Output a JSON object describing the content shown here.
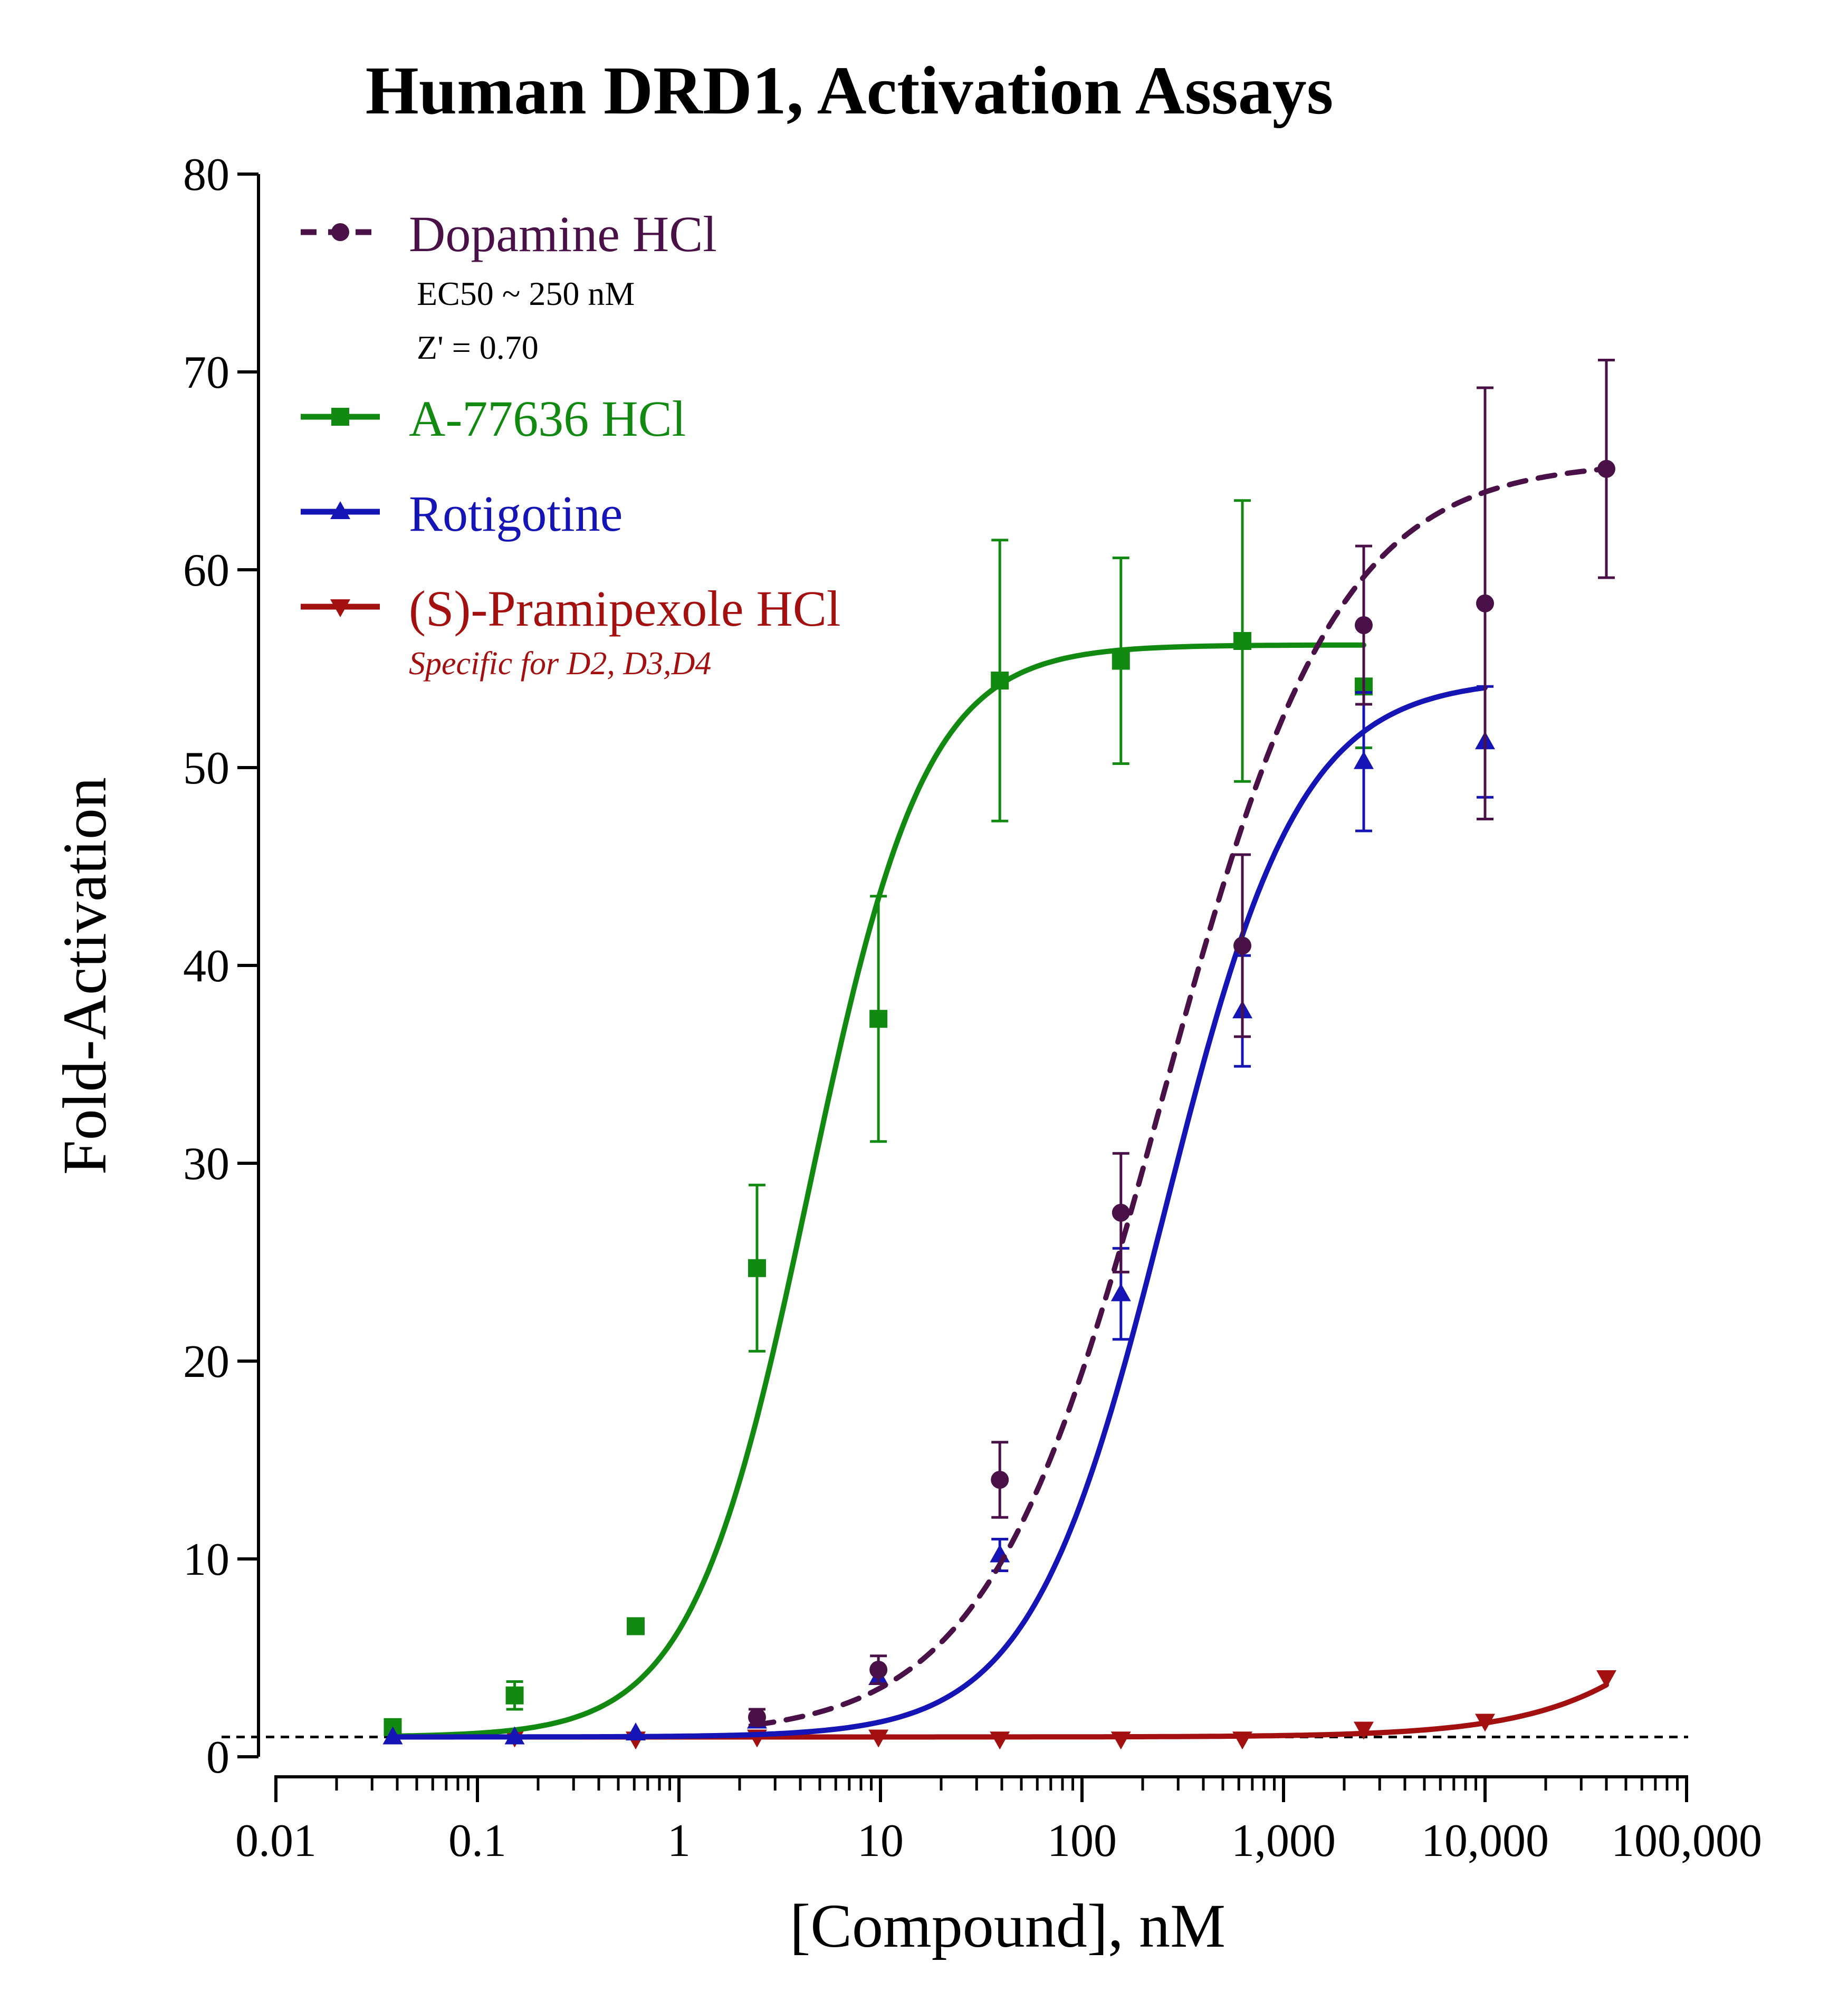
{
  "chart_data": {
    "type": "line",
    "title": "Human DRD1, Activation Assays",
    "xlabel": "[Compound], nM",
    "ylabel": "Fold-Activation",
    "x_scale": "log",
    "xlim": [
      0.01,
      100000
    ],
    "ylim": [
      0,
      80
    ],
    "x_ticks": [
      0.01,
      0.1,
      1,
      10,
      100,
      1000,
      10000,
      100000
    ],
    "x_tick_labels": [
      "0.01",
      "0.1",
      "1",
      "10",
      "100",
      "1,000",
      "10,000",
      "100,000"
    ],
    "y_ticks": [
      0,
      10,
      20,
      30,
      40,
      50,
      60,
      70,
      80
    ],
    "y_tick_labels": [
      "0",
      "10",
      "20",
      "30",
      "40",
      "50",
      "60",
      "70",
      "80"
    ],
    "baseline": 1,
    "grid": false,
    "legend_position": "top-left",
    "series": [
      {
        "name": "Dopamine HCl",
        "color": "#4a1048",
        "marker": "circle",
        "line_style": "dashed",
        "notes": [
          "EC50 ~ 250 nM",
          "Z' = 0.70"
        ],
        "x": [
          2.44,
          9.77,
          39.1,
          156,
          625,
          2500,
          10000,
          40000
        ],
        "y": [
          2.0,
          4.4,
          14.0,
          27.5,
          41.0,
          57.2,
          58.3,
          65.1
        ],
        "err": [
          0.4,
          0.7,
          1.9,
          3.0,
          4.6,
          4.0,
          10.9,
          5.5
        ],
        "fit": {
          "bottom": 1,
          "top": 65.5,
          "ec50": 250,
          "hill": 1.0,
          "x_range": [
            2.44,
            40000
          ]
        }
      },
      {
        "name": "A-77636 HCl",
        "color": "#128a12",
        "marker": "square",
        "line_style": "solid",
        "x": [
          0.038,
          0.153,
          0.61,
          2.44,
          9.77,
          39.1,
          156,
          625,
          2500
        ],
        "y": [
          1.5,
          3.1,
          6.6,
          24.7,
          37.3,
          54.4,
          55.4,
          56.4,
          54.1
        ],
        "err": [
          0.2,
          0.7,
          0,
          4.2,
          6.2,
          7.1,
          5.2,
          7.1,
          3.1
        ],
        "fit": {
          "bottom": 1,
          "top": 56.2,
          "ec50": 4.4,
          "hill": 1.5,
          "x_range": [
            0.038,
            2500
          ]
        }
      },
      {
        "name": "Rotigotine",
        "color": "#1515b5",
        "marker": "triangle-up",
        "line_style": "solid",
        "x": [
          0.038,
          0.153,
          0.61,
          2.44,
          9.77,
          39.1,
          156,
          625,
          2500,
          10000
        ],
        "y": [
          1.0,
          1.0,
          1.2,
          1.8,
          4.0,
          10.2,
          23.4,
          37.7,
          50.3,
          51.3
        ],
        "err": [
          0,
          0,
          0,
          0.2,
          0.3,
          0.8,
          2.3,
          2.8,
          3.5,
          2.8
        ],
        "fit": {
          "bottom": 1,
          "top": 54.5,
          "ec50": 260,
          "hill": 1.3,
          "x_range": [
            0.038,
            10000
          ]
        }
      },
      {
        "name": "(S)-Pramipexole HCl",
        "color": "#a31010",
        "marker": "triangle-down",
        "line_style": "solid",
        "note": "Specific for D2, D3,D4",
        "x": [
          0.153,
          0.61,
          2.44,
          9.77,
          39.1,
          156,
          625,
          2500,
          10000,
          40000
        ],
        "y": [
          1.0,
          0.9,
          1.0,
          1.0,
          0.9,
          0.9,
          0.9,
          1.4,
          1.8,
          4.0
        ],
        "err": [
          0,
          0,
          0,
          0,
          0,
          0,
          0,
          0,
          0,
          0
        ],
        "fit": {
          "bottom": 1,
          "top": 30,
          "ec50": 400000,
          "hill": 1.0,
          "x_range": [
            0.153,
            40000
          ]
        }
      }
    ]
  }
}
